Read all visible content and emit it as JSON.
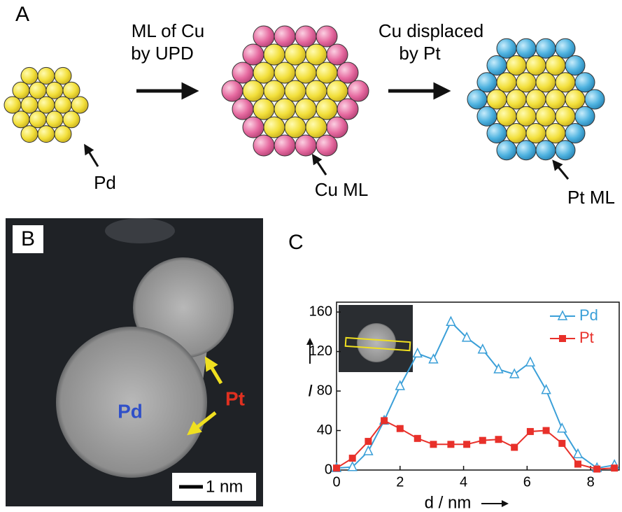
{
  "panel_a": {
    "label": "A",
    "step1": [
      "ML of Cu",
      "by UPD"
    ],
    "step2": [
      "Cu displaced",
      "by Pt"
    ],
    "labels": [
      "Pd",
      "Cu ML",
      "Pt ML"
    ]
  },
  "panel_b": {
    "label": "B",
    "core": "Pd",
    "shell": "Pt",
    "scale": "1 nm"
  },
  "chart_data": {
    "type": "line",
    "panel_label": "C",
    "xlabel": "d / nm",
    "ylabel": "I",
    "x": [
      0,
      0.5,
      1.0,
      1.5,
      2.0,
      2.55,
      3.05,
      3.6,
      4.1,
      4.6,
      5.1,
      5.6,
      6.1,
      6.6,
      7.1,
      7.6,
      8.2,
      8.75
    ],
    "series": [
      {
        "name": "Pd",
        "color": "#3a9fd8",
        "marker": "triangle",
        "values": [
          2,
          3,
          19,
          50,
          85,
          118,
          112,
          150,
          134,
          122,
          102,
          97,
          109,
          81,
          42,
          16,
          2,
          5
        ]
      },
      {
        "name": "Pt",
        "color": "#e8302a",
        "marker": "square",
        "values": [
          2,
          12,
          29,
          50,
          42,
          32,
          26,
          26,
          26,
          30,
          31,
          23,
          39,
          40,
          27,
          6,
          1,
          2
        ]
      }
    ],
    "xlim": [
      0,
      8.9
    ],
    "ylim": [
      0,
      170
    ],
    "xticks": [
      0,
      2,
      4,
      6,
      8
    ],
    "yticks": [
      0,
      40,
      80,
      120,
      160
    ],
    "legend": "upper right"
  }
}
